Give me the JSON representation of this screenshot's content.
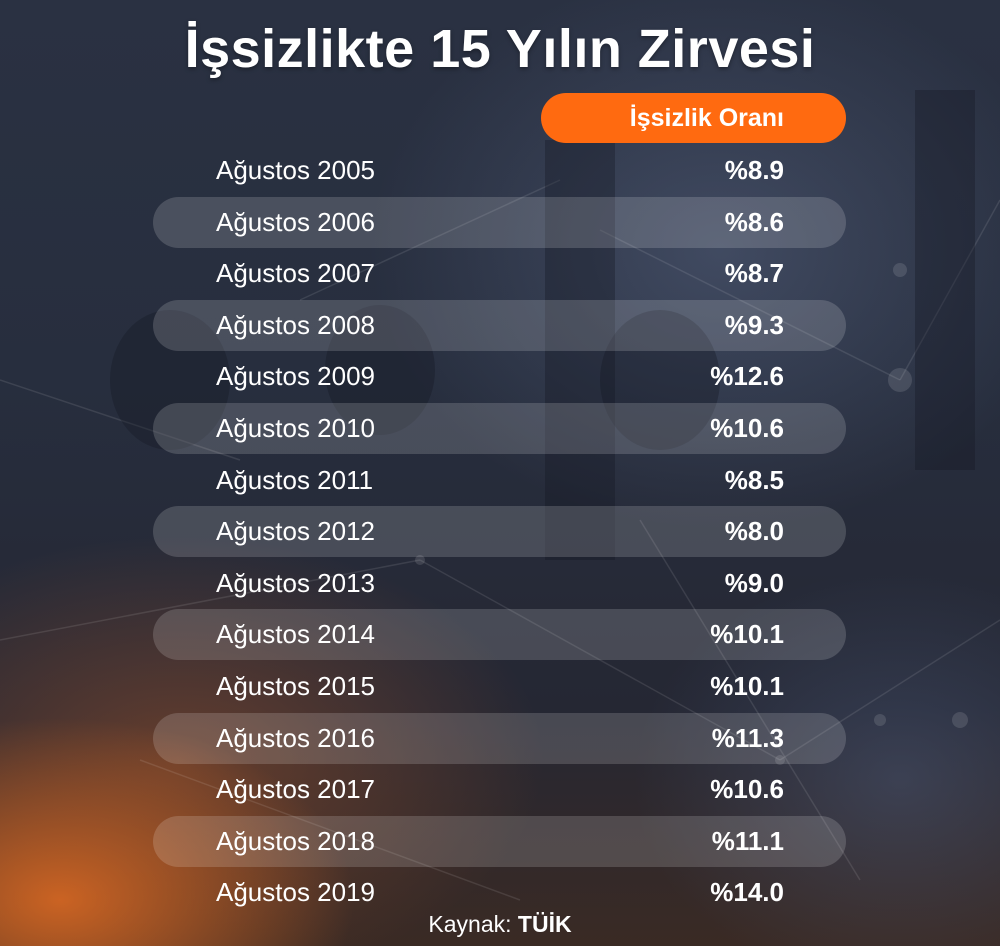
{
  "title": "İşsizlikte 15 Yılın Zirvesi",
  "header": {
    "column_label": "İşsizlik Oranı",
    "accent_color": "#ff6a10"
  },
  "chart_data": {
    "type": "table",
    "title": "İşsizlikte 15 Yılın Zirvesi",
    "columns": [
      "",
      "İşsizlik Oranı"
    ],
    "rows": [
      {
        "label": "Ağustos 2005",
        "display": "%8.9",
        "value": 8.9
      },
      {
        "label": "Ağustos 2006",
        "display": "%8.6",
        "value": 8.6
      },
      {
        "label": "Ağustos 2007",
        "display": "%8.7",
        "value": 8.7
      },
      {
        "label": "Ağustos 2008",
        "display": "%9.3",
        "value": 9.3
      },
      {
        "label": "Ağustos 2009",
        "display": "%12.6",
        "value": 12.6
      },
      {
        "label": "Ağustos 2010",
        "display": "%10.6",
        "value": 10.6
      },
      {
        "label": "Ağustos 2011",
        "display": "%8.5",
        "value": 8.5
      },
      {
        "label": "Ağustos 2012",
        "display": "%8.0",
        "value": 8.0
      },
      {
        "label": "Ağustos 2013",
        "display": "%9.0",
        "value": 9.0
      },
      {
        "label": "Ağustos 2014",
        "display": "%10.1",
        "value": 10.1
      },
      {
        "label": "Ağustos 2015",
        "display": "%10.1",
        "value": 10.1
      },
      {
        "label": "Ağustos 2016",
        "display": "%11.3",
        "value": 11.3
      },
      {
        "label": "Ağustos 2017",
        "display": "%10.6",
        "value": 10.6
      },
      {
        "label": "Ağustos 2018",
        "display": "%11.1",
        "value": 11.1
      },
      {
        "label": "Ağustos 2019",
        "display": "%14.0",
        "value": 14.0
      }
    ]
  },
  "source": {
    "prefix": "Kaynak:",
    "name": "TÜİK"
  }
}
